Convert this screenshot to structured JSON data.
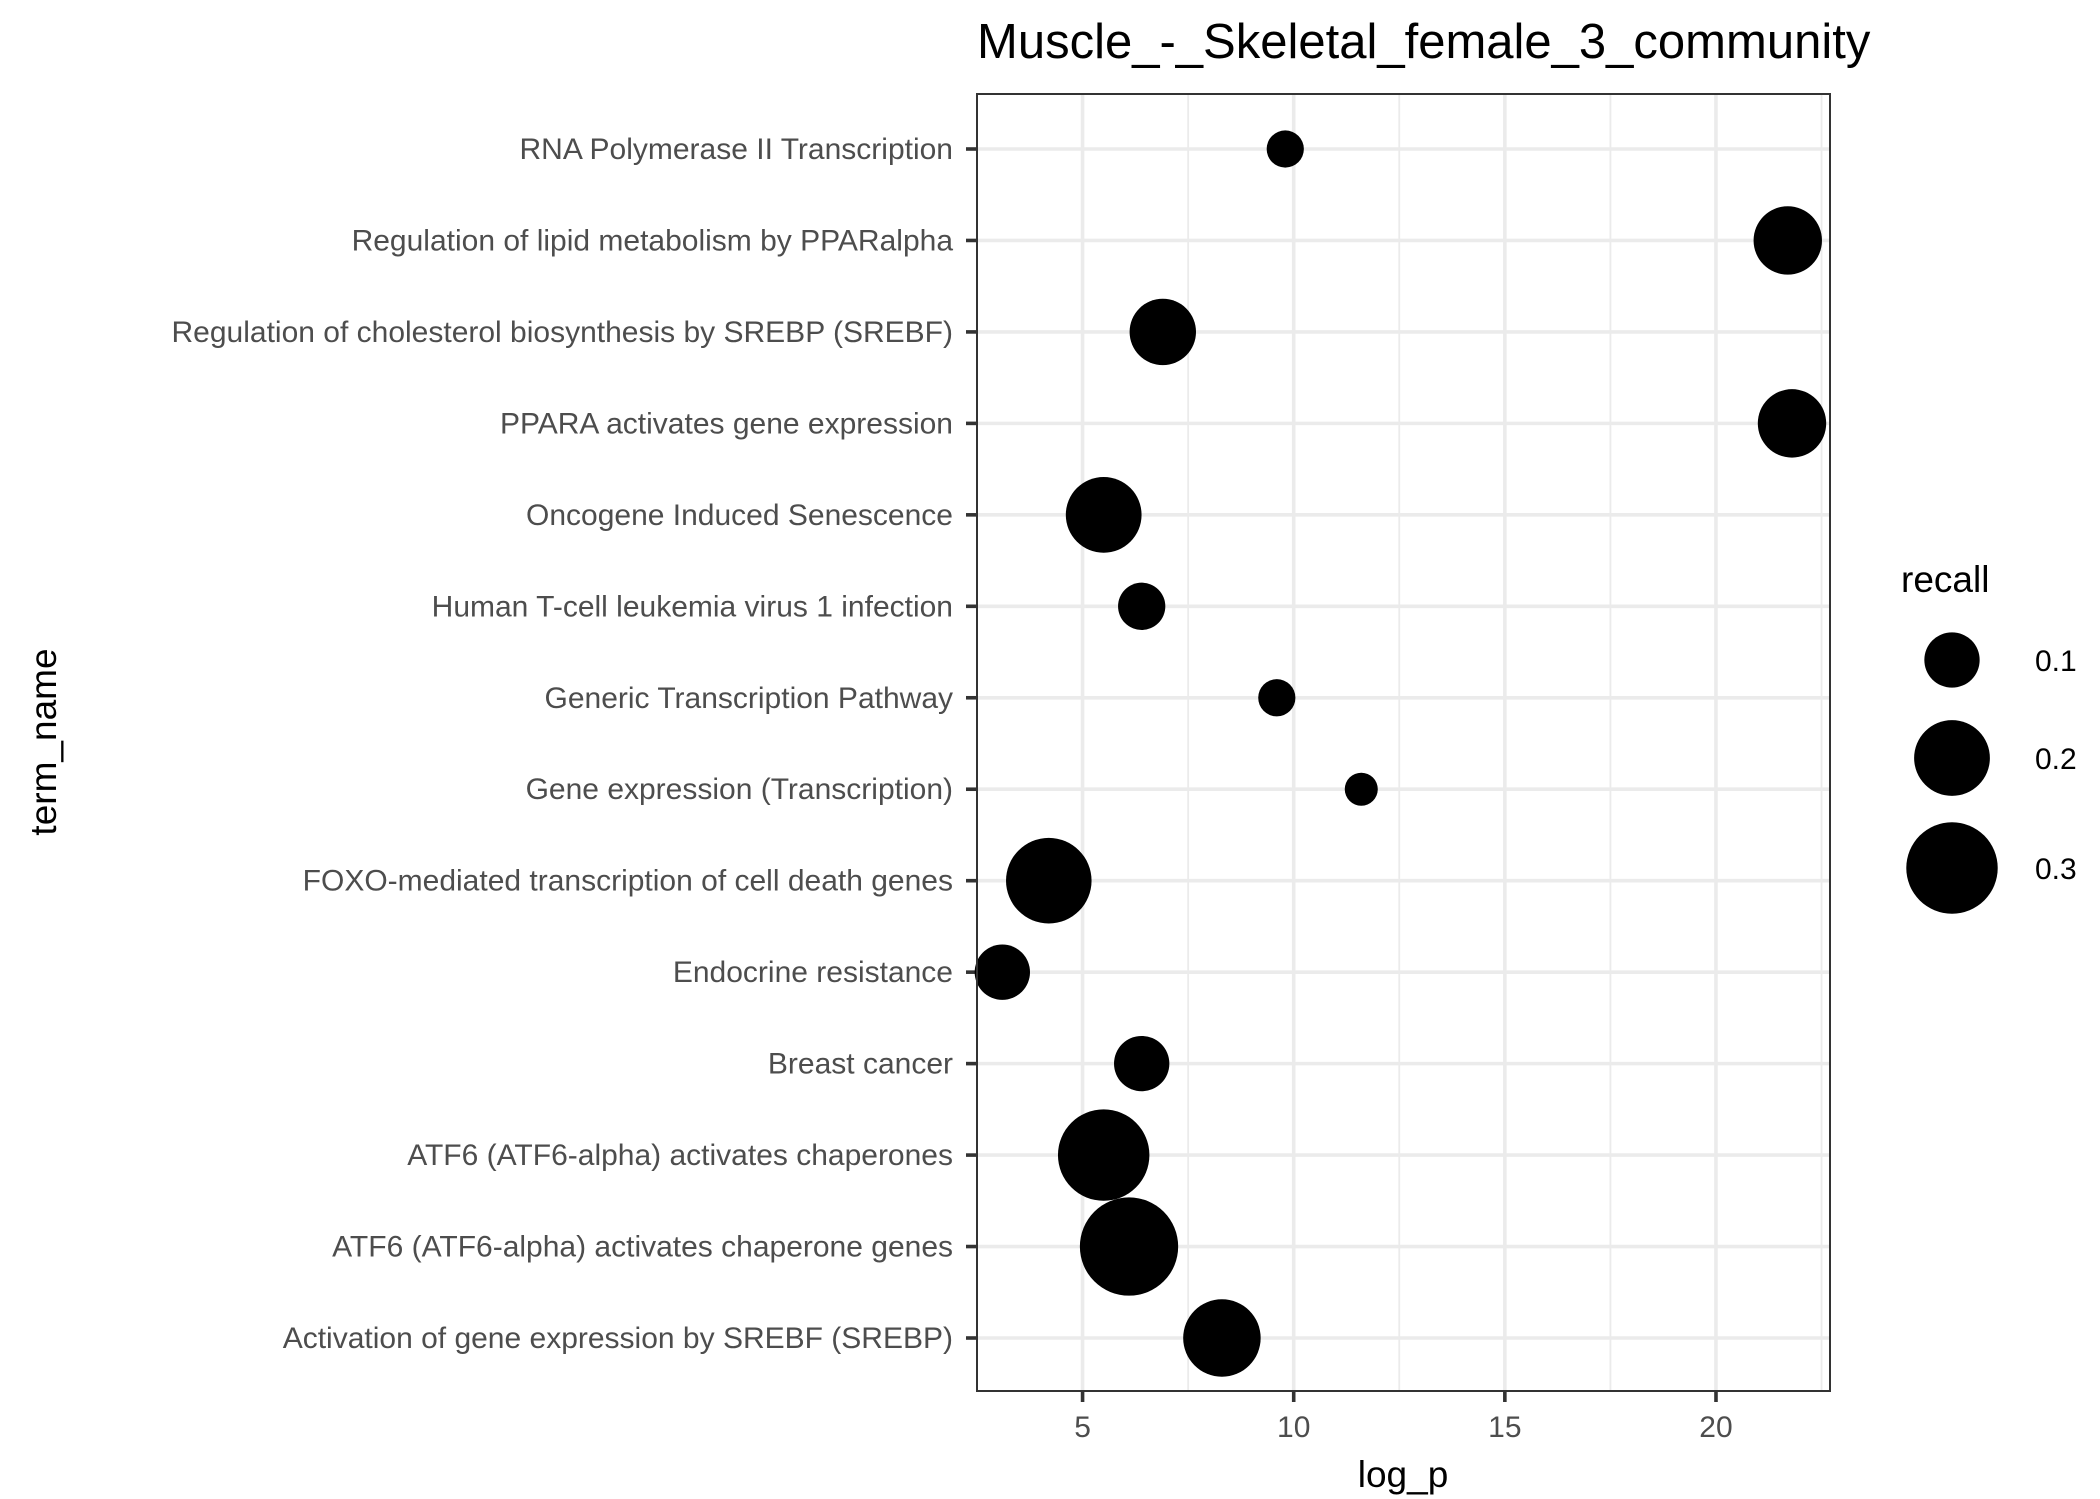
{
  "chart_data": {
    "type": "scatter",
    "title": "Muscle_-_Skeletal_female_3_community",
    "xlabel": "log_p",
    "ylabel": "term_name",
    "xlim": [
      2.5,
      22.7
    ],
    "x_ticks": [
      5,
      10,
      15,
      20
    ],
    "x_tick_labels": [
      "5",
      "10",
      "15",
      "20"
    ],
    "grid": true,
    "legend": {
      "title": "recall",
      "placement": "right",
      "entries": [
        {
          "value": 0.1,
          "label": "0.1"
        },
        {
          "value": 0.2,
          "label": "0.2"
        },
        {
          "value": 0.3,
          "label": "0.3"
        }
      ]
    },
    "categories": [
      "Activation of gene expression by SREBF (SREBP)",
      "ATF6 (ATF6-alpha) activates chaperone genes",
      "ATF6 (ATF6-alpha) activates chaperones",
      "Breast cancer",
      "Endocrine resistance",
      "FOXO-mediated transcription of cell death genes",
      "Gene expression (Transcription)",
      "Generic Transcription Pathway",
      "Human T-cell leukemia virus 1 infection",
      "Oncogene Induced Senescence",
      "PPARA activates gene expression",
      "Regulation of cholesterol biosynthesis by SREBP (SREBF)",
      "Regulation of lipid metabolism by PPARalpha",
      "RNA Polymerase II Transcription"
    ],
    "points": [
      {
        "term": "Activation of gene expression by SREBF (SREBP)",
        "log_p": 8.3,
        "recall": 0.21
      },
      {
        "term": "ATF6 (ATF6-alpha) activates chaperone genes",
        "log_p": 6.1,
        "recall": 0.35
      },
      {
        "term": "ATF6 (ATF6-alpha) activates chaperones",
        "log_p": 5.5,
        "recall": 0.3
      },
      {
        "term": "Breast cancer",
        "log_p": 6.4,
        "recall": 0.1
      },
      {
        "term": "Endocrine resistance",
        "log_p": 3.1,
        "recall": 0.1
      },
      {
        "term": "FOXO-mediated transcription of cell death genes",
        "log_p": 4.2,
        "recall": 0.26
      },
      {
        "term": "Gene expression (Transcription)",
        "log_p": 11.6,
        "recall": 0.03
      },
      {
        "term": "Generic Transcription Pathway",
        "log_p": 9.6,
        "recall": 0.04
      },
      {
        "term": "Human T-cell leukemia virus 1 infection",
        "log_p": 6.4,
        "recall": 0.07
      },
      {
        "term": "Oncogene Induced Senescence",
        "log_p": 5.5,
        "recall": 0.2
      },
      {
        "term": "PPARA activates gene expression",
        "log_p": 21.8,
        "recall": 0.16
      },
      {
        "term": "Regulation of cholesterol biosynthesis by SREBP (SREBF)",
        "log_p": 6.9,
        "recall": 0.15
      },
      {
        "term": "Regulation of lipid metabolism by PPARalpha",
        "log_p": 21.7,
        "recall": 0.16
      },
      {
        "term": "RNA Polymerase II Transcription",
        "log_p": 9.8,
        "recall": 0.04
      }
    ],
    "point_color": "#000000"
  }
}
